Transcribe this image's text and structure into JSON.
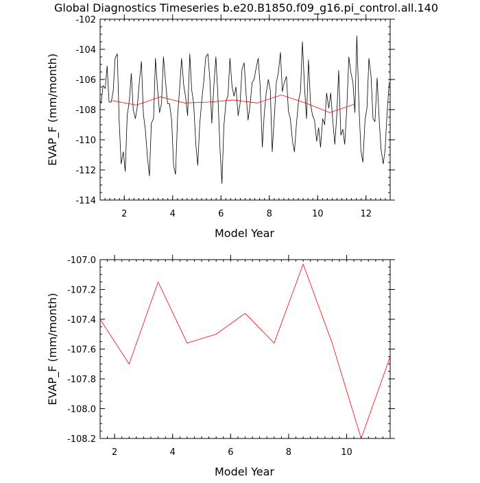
{
  "title": "Global Diagnostics Timeseries b.e20.B1850.f09_g16.pi_control.all.140",
  "colors": {
    "monthly": "#000000",
    "annual": "#ff0000",
    "axis": "#000000"
  },
  "chart_data": [
    {
      "type": "line",
      "xlabel": "Model Year",
      "ylabel": "EVAP_F (mm/month)",
      "xlim": [
        1,
        13
      ],
      "ylim": [
        -114,
        -102
      ],
      "xticks": [
        2,
        4,
        6,
        8,
        10,
        12
      ],
      "xtick_labels": [
        "2",
        "4",
        "6",
        "8",
        "10",
        "12"
      ],
      "yticks": [
        -114,
        -112,
        -110,
        -108,
        -106,
        -104,
        -102
      ],
      "ytick_labels": [
        "-114",
        "-112",
        "-110",
        "-108",
        "-106",
        "-104",
        "-102"
      ],
      "grid": false,
      "series": [
        {
          "color": "#000000",
          "x": [
            1.04,
            1.12,
            1.21,
            1.29,
            1.37,
            1.46,
            1.54,
            1.62,
            1.71,
            1.79,
            1.87,
            1.96,
            2.04,
            2.12,
            2.21,
            2.29,
            2.37,
            2.46,
            2.54,
            2.62,
            2.71,
            2.79,
            2.87,
            2.96,
            3.04,
            3.12,
            3.21,
            3.29,
            3.37,
            3.46,
            3.54,
            3.62,
            3.71,
            3.79,
            3.87,
            3.96,
            4.04,
            4.12,
            4.21,
            4.29,
            4.37,
            4.46,
            4.54,
            4.62,
            4.71,
            4.79,
            4.87,
            4.96,
            5.04,
            5.12,
            5.21,
            5.29,
            5.37,
            5.46,
            5.54,
            5.62,
            5.71,
            5.79,
            5.87,
            5.96,
            6.04,
            6.12,
            6.21,
            6.29,
            6.37,
            6.46,
            6.54,
            6.62,
            6.71,
            6.79,
            6.87,
            6.96,
            7.04,
            7.12,
            7.21,
            7.29,
            7.37,
            7.46,
            7.54,
            7.62,
            7.71,
            7.79,
            7.87,
            7.96,
            8.04,
            8.12,
            8.21,
            8.29,
            8.37,
            8.46,
            8.54,
            8.62,
            8.71,
            8.79,
            8.87,
            8.96,
            9.04,
            9.12,
            9.21,
            9.29,
            9.37,
            9.46,
            9.54,
            9.62,
            9.71,
            9.79,
            9.87,
            9.96,
            10.04,
            10.12,
            10.21,
            10.29,
            10.37,
            10.46,
            10.54,
            10.62,
            10.71,
            10.79,
            10.87,
            10.96,
            11.04,
            11.12,
            11.21,
            11.29,
            11.37,
            11.46,
            11.54,
            11.62,
            11.71,
            11.79,
            11.87,
            11.96,
            12.04,
            12.12,
            12.21,
            12.29,
            12.37,
            12.46,
            12.54,
            12.62,
            12.71,
            12.79,
            12.87,
            12.96
          ],
          "y": [
            -107.6,
            -106.4,
            -106.6,
            -105.1,
            -107.5,
            -107.5,
            -106.8,
            -104.6,
            -104.3,
            -108.8,
            -111.6,
            -110.8,
            -112.1,
            -108.4,
            -107.4,
            -105.6,
            -108.0,
            -108.6,
            -107.8,
            -106.2,
            -104.8,
            -108.3,
            -109.3,
            -111.2,
            -112.4,
            -108.9,
            -108.6,
            -104.6,
            -106.5,
            -108.2,
            -107.6,
            -104.5,
            -106.2,
            -107.6,
            -107.6,
            -108.7,
            -111.7,
            -112.3,
            -108.3,
            -106.6,
            -104.6,
            -106.4,
            -107.2,
            -108.4,
            -104.3,
            -106.7,
            -107.6,
            -110.3,
            -111.7,
            -109.0,
            -107.3,
            -106.1,
            -104.5,
            -104.3,
            -106.0,
            -108.9,
            -106.3,
            -104.5,
            -107.0,
            -110.6,
            -112.9,
            -109.1,
            -107.4,
            -107.1,
            -104.6,
            -106.5,
            -107.1,
            -106.5,
            -108.4,
            -107.6,
            -105.3,
            -104.9,
            -107.0,
            -108.7,
            -107.6,
            -106.2,
            -106.0,
            -105.2,
            -104.6,
            -106.4,
            -110.5,
            -108.3,
            -106.9,
            -106.0,
            -106.7,
            -110.8,
            -108.4,
            -106.2,
            -105.6,
            -104.2,
            -106.8,
            -106.2,
            -105.8,
            -108.1,
            -108.6,
            -110.1,
            -110.8,
            -109.0,
            -107.4,
            -106.8,
            -103.5,
            -106.6,
            -108.6,
            -104.7,
            -107.7,
            -108.4,
            -108.7,
            -110.1,
            -109.2,
            -110.5,
            -108.6,
            -109.0,
            -106.9,
            -107.9,
            -106.9,
            -108.6,
            -110.3,
            -108.4,
            -105.4,
            -109.7,
            -109.3,
            -110.3,
            -107.8,
            -104.5,
            -105.5,
            -106.2,
            -108.2,
            -103.1,
            -107.8,
            -110.7,
            -111.5,
            -108.7,
            -107.9,
            -104.6,
            -105.8,
            -108.6,
            -108.8,
            -105.9,
            -108.5,
            -110.6,
            -111.6,
            -110.7,
            -108.3,
            -106.2
          ]
        },
        {
          "color": "#ff0000",
          "x": [
            1.5,
            2.5,
            3.5,
            4.5,
            5.5,
            6.5,
            7.5,
            8.5,
            9.5,
            10.5,
            11.5
          ],
          "y": [
            -107.4,
            -107.7,
            -107.15,
            -107.56,
            -107.5,
            -107.36,
            -107.56,
            -107.03,
            -107.56,
            -108.2,
            -107.65
          ]
        }
      ]
    },
    {
      "type": "line",
      "xlabel": "Model Year",
      "ylabel": "EVAP_F (mm/month)",
      "xlim": [
        1.5,
        11.5
      ],
      "ylim": [
        -108.2,
        -107.0
      ],
      "xticks": [
        2,
        4,
        6,
        8,
        10
      ],
      "xtick_labels": [
        "2",
        "4",
        "6",
        "8",
        "10"
      ],
      "yticks": [
        -108.2,
        -108.0,
        -107.8,
        -107.6,
        -107.4,
        -107.2,
        -107.0
      ],
      "ytick_labels": [
        "-108.2",
        "-108.0",
        "-107.8",
        "-107.6",
        "-107.4",
        "-107.2",
        "-107.0"
      ],
      "grid": false,
      "series": [
        {
          "color": "#ff0000",
          "x": [
            1.5,
            2.5,
            3.5,
            4.5,
            5.5,
            6.5,
            7.5,
            8.5,
            9.5,
            10.5,
            11.5
          ],
          "y": [
            -107.4,
            -107.7,
            -107.15,
            -107.56,
            -107.5,
            -107.36,
            -107.56,
            -107.03,
            -107.56,
            -108.2,
            -107.65
          ]
        }
      ]
    }
  ]
}
